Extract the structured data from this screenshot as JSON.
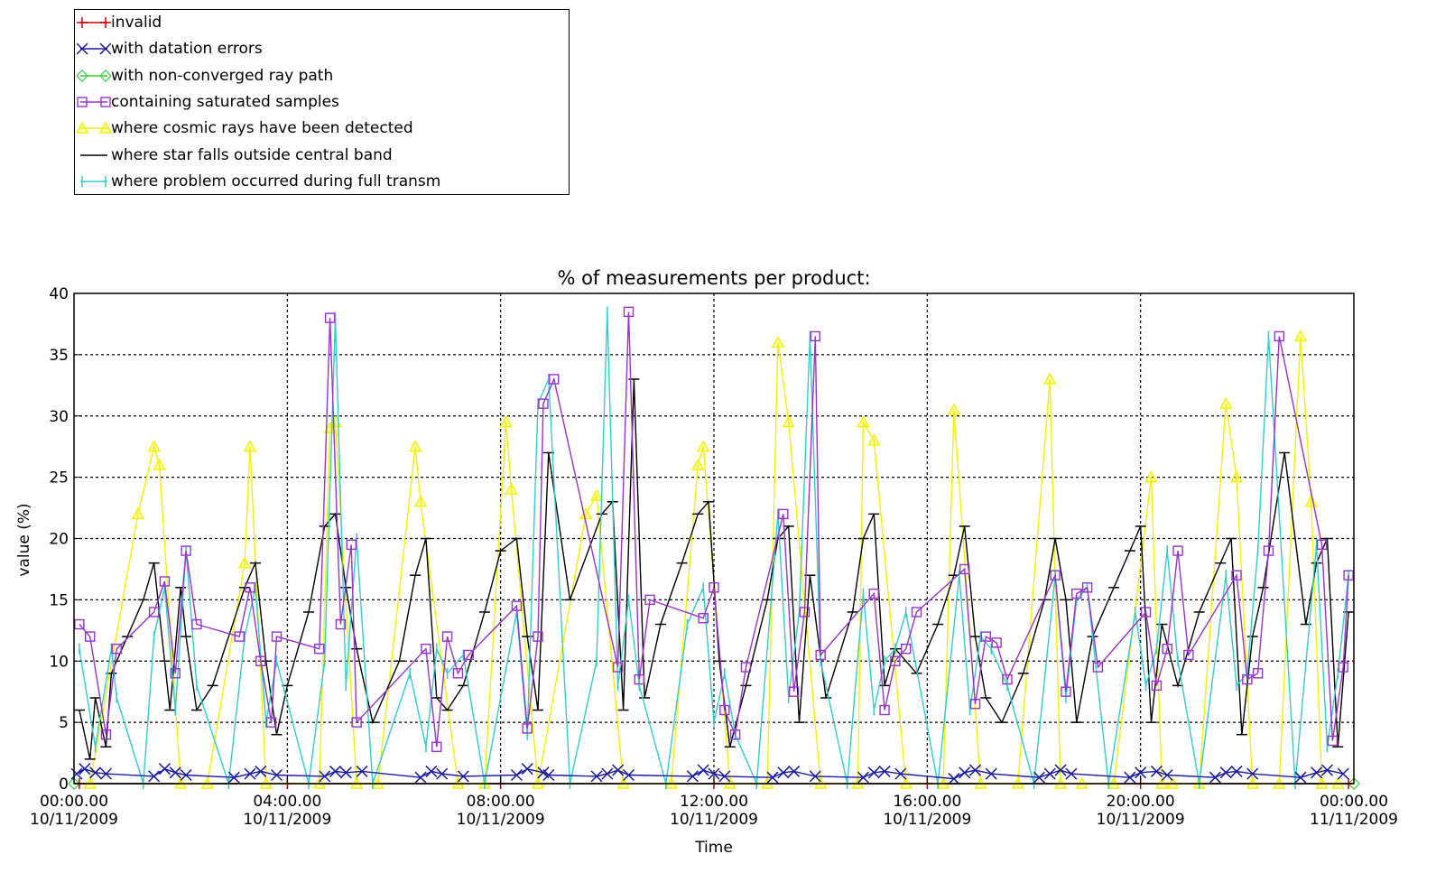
{
  "chart_data": {
    "type": "line",
    "title": "% of measurements per product:",
    "xlabel": "Time",
    "ylabel": "value (%)",
    "ylim": [
      0,
      40
    ],
    "xlim_hours": [
      0,
      24
    ],
    "yticks": [
      0,
      5,
      10,
      15,
      20,
      25,
      30,
      35,
      40
    ],
    "xticks": [
      {
        "hour": 0,
        "time": "00:00.00",
        "date": "10/11/2009"
      },
      {
        "hour": 4,
        "time": "04:00.00",
        "date": "10/11/2009"
      },
      {
        "hour": 8,
        "time": "08:00.00",
        "date": "10/11/2009"
      },
      {
        "hour": 12,
        "time": "12:00.00",
        "date": "10/11/2009"
      },
      {
        "hour": 16,
        "time": "16:00.00",
        "date": "10/11/2009"
      },
      {
        "hour": 20,
        "time": "20:00.00",
        "date": "10/11/2009"
      },
      {
        "hour": 24,
        "time": "00:00.00",
        "date": "11/11/2009"
      }
    ],
    "grid": true,
    "legend_position": "top-left outside plot",
    "series": [
      {
        "name": "invalid",
        "color": "#cc0000",
        "marker": "plus",
        "x": [
          0.1,
          4.0,
          8.0,
          12.0,
          16.0,
          20.0,
          23.9
        ],
        "y": [
          0,
          0,
          0,
          0,
          0,
          0,
          0
        ]
      },
      {
        "name": "with datation errors",
        "color": "#1a1aa0",
        "marker": "x",
        "x": [
          0.05,
          0.2,
          0.4,
          0.6,
          1.5,
          1.7,
          1.9,
          2.1,
          3.0,
          3.3,
          3.5,
          3.8,
          4.7,
          4.9,
          5.1,
          5.4,
          6.5,
          6.7,
          6.9,
          7.3,
          8.3,
          8.5,
          8.8,
          8.9,
          9.8,
          10.0,
          10.2,
          10.4,
          11.6,
          11.8,
          12.0,
          12.2,
          13.1,
          13.3,
          13.5,
          13.9,
          14.8,
          15.0,
          15.2,
          15.5,
          16.5,
          16.7,
          16.9,
          17.2,
          18.1,
          18.3,
          18.5,
          18.7,
          19.8,
          20.0,
          20.3,
          20.5,
          21.4,
          21.6,
          21.8,
          22.1,
          23.0,
          23.3,
          23.5,
          23.8
        ],
        "y": [
          0.8,
          1.2,
          0.9,
          0.8,
          0.6,
          1.2,
          0.9,
          0.7,
          0.5,
          0.8,
          1.0,
          0.7,
          0.6,
          1.0,
          0.9,
          1.0,
          0.5,
          1.0,
          0.8,
          0.6,
          0.7,
          1.2,
          0.9,
          0.7,
          0.6,
          0.8,
          1.1,
          0.7,
          0.6,
          1.1,
          0.8,
          0.6,
          0.5,
          0.9,
          1.0,
          0.6,
          0.5,
          0.9,
          1.0,
          0.8,
          0.4,
          0.9,
          1.1,
          0.8,
          0.5,
          0.8,
          1.1,
          0.8,
          0.5,
          0.9,
          1.0,
          0.7,
          0.5,
          0.9,
          1.0,
          0.8,
          0.5,
          0.9,
          1.1,
          0.8
        ]
      },
      {
        "name": "with non-converged ray path",
        "color": "#33cc33",
        "marker": "diamond",
        "x": [
          0.0,
          24.0
        ],
        "y": [
          0,
          0
        ]
      },
      {
        "name": "containing saturated samples",
        "color": "#9933cc",
        "marker": "square",
        "x": [
          0.1,
          0.3,
          0.6,
          0.8,
          1.5,
          1.7,
          1.9,
          2.1,
          2.3,
          3.1,
          3.3,
          3.5,
          3.7,
          3.8,
          4.6,
          4.8,
          5.0,
          5.2,
          5.3,
          6.6,
          6.8,
          7.0,
          7.2,
          7.4,
          8.3,
          8.5,
          8.7,
          8.8,
          9.0,
          10.2,
          10.4,
          10.6,
          10.8,
          11.8,
          12.0,
          12.2,
          12.4,
          12.6,
          13.3,
          13.5,
          13.7,
          13.9,
          14.0,
          15.0,
          15.2,
          15.4,
          15.6,
          15.8,
          16.7,
          16.9,
          17.1,
          17.3,
          17.5,
          18.4,
          18.6,
          18.8,
          19.0,
          19.2,
          20.1,
          20.3,
          20.5,
          20.7,
          20.9,
          21.8,
          22.0,
          22.2,
          22.4,
          22.6,
          23.4,
          23.6,
          23.8,
          23.9
        ],
        "y": [
          13,
          12,
          4,
          11,
          14,
          16.5,
          9,
          19,
          13,
          12,
          16,
          10,
          5,
          12,
          11,
          38,
          13,
          19.5,
          5,
          11,
          3,
          12,
          9,
          10.5,
          14.5,
          4.5,
          12,
          31,
          33,
          9.5,
          38.5,
          8.5,
          15,
          13.5,
          16,
          6,
          4,
          9.5,
          22,
          7.5,
          14,
          36.5,
          10.5,
          15.5,
          6,
          10,
          11,
          14,
          17.5,
          6.5,
          12,
          11.5,
          8.5,
          17,
          7.5,
          15.5,
          16,
          9.5,
          14,
          8,
          11,
          19,
          10.5,
          17,
          8.5,
          9,
          19,
          36.5,
          19.5,
          3.5,
          9.5,
          17
        ]
      },
      {
        "name": "where cosmic rays have been detected",
        "color": "#f2f200",
        "marker": "triangle",
        "x": [
          0.3,
          1.2,
          1.5,
          1.6,
          2.0,
          2.5,
          3.2,
          3.3,
          3.6,
          4.6,
          4.8,
          4.9,
          5.3,
          5.7,
          6.4,
          6.5,
          7.2,
          7.7,
          8.1,
          8.2,
          8.7,
          9.6,
          9.8,
          10.3,
          11.2,
          11.7,
          11.8,
          12.3,
          13.0,
          13.2,
          13.4,
          14.0,
          14.7,
          14.8,
          15.0,
          15.6,
          16.3,
          16.5,
          17.0,
          17.7,
          18.3,
          18.5,
          18.9,
          19.5,
          20.2,
          20.4,
          20.6,
          21.1,
          21.6,
          21.8,
          22.1,
          22.6,
          23.0,
          23.2,
          23.4,
          23.7
        ],
        "y": [
          0,
          22,
          27.5,
          26,
          0,
          0,
          18,
          27.5,
          0,
          0,
          29,
          29.5,
          0,
          0,
          27.5,
          23,
          0,
          0,
          29.5,
          24,
          0,
          22,
          23.5,
          0,
          0,
          26,
          27.5,
          0,
          0,
          36,
          29.5,
          0,
          0,
          29.5,
          28,
          0,
          0,
          30.5,
          0,
          0,
          33,
          0,
          0,
          0,
          25,
          0,
          0,
          0,
          31,
          25,
          0,
          0,
          36.5,
          23,
          0,
          0
        ]
      },
      {
        "name": "where star falls outside central band",
        "color": "#000000",
        "marker": "bar",
        "x": [
          0.1,
          0.3,
          0.4,
          0.6,
          0.7,
          1.0,
          1.3,
          1.5,
          1.7,
          1.8,
          2.0,
          2.1,
          2.3,
          2.6,
          3.2,
          3.4,
          3.6,
          3.8,
          4.0,
          4.4,
          4.7,
          4.9,
          5.1,
          5.3,
          5.6,
          6.1,
          6.4,
          6.6,
          6.8,
          7.0,
          7.3,
          7.7,
          8.0,
          8.3,
          8.5,
          8.7,
          8.9,
          9.3,
          9.9,
          10.1,
          10.3,
          10.5,
          10.7,
          11.0,
          11.4,
          11.7,
          11.9,
          12.1,
          12.3,
          12.6,
          13.0,
          13.2,
          13.4,
          13.6,
          13.8,
          14.1,
          14.6,
          14.8,
          15.0,
          15.2,
          15.4,
          15.8,
          16.2,
          16.5,
          16.7,
          16.9,
          17.1,
          17.4,
          17.8,
          18.2,
          18.4,
          18.6,
          18.8,
          19.1,
          19.5,
          19.8,
          20.0,
          20.2,
          20.4,
          20.7,
          21.1,
          21.5,
          21.7,
          21.9,
          22.1,
          22.3,
          22.7,
          23.1,
          23.3,
          23.5,
          23.7,
          23.9
        ],
        "y": [
          6,
          2,
          7,
          3,
          9,
          12,
          15,
          18,
          10,
          6,
          16,
          12,
          6,
          8,
          16,
          18,
          10,
          4,
          8,
          14,
          21,
          22,
          16,
          11,
          5,
          10,
          17,
          20,
          7,
          6,
          8,
          14,
          19,
          20,
          12,
          6,
          27,
          15,
          22,
          23,
          6,
          33,
          7,
          13,
          18,
          22,
          23,
          10,
          3,
          8,
          15,
          20,
          21,
          5,
          17,
          7,
          14,
          20,
          22,
          8,
          11,
          9,
          13,
          17,
          21,
          12,
          7,
          5,
          9,
          15,
          20,
          15,
          5,
          12,
          16,
          19,
          21,
          5,
          13,
          8,
          14,
          18,
          20,
          4,
          12,
          16,
          27,
          13,
          18,
          20,
          3,
          14
        ]
      },
      {
        "name": "where problem occurred during full transm",
        "color": "#33cccc",
        "marker": "vbar",
        "x": [
          0.1,
          0.4,
          0.7,
          0.8,
          1.3,
          1.5,
          1.7,
          1.9,
          2.1,
          2.3,
          2.9,
          3.2,
          3.4,
          3.6,
          3.8,
          4.4,
          4.7,
          4.9,
          5.1,
          5.3,
          5.6,
          6.3,
          6.6,
          6.8,
          7.0,
          7.3,
          7.7,
          8.3,
          8.5,
          8.7,
          8.9,
          9.3,
          9.8,
          10.0,
          10.2,
          10.4,
          10.6,
          11.1,
          11.5,
          11.8,
          12.0,
          12.2,
          12.4,
          12.8,
          13.2,
          13.4,
          13.6,
          13.8,
          14.0,
          14.5,
          14.8,
          15.0,
          15.2,
          15.4,
          15.6,
          16.2,
          16.6,
          16.8,
          17.0,
          17.2,
          17.5,
          18.0,
          18.4,
          18.6,
          18.8,
          19.0,
          19.4,
          19.9,
          20.1,
          20.3,
          20.5,
          20.7,
          21.1,
          21.6,
          21.8,
          22.0,
          22.2,
          22.4,
          22.9,
          23.3,
          23.5,
          23.7,
          23.9
        ],
        "y": [
          11,
          3,
          11,
          7,
          0,
          12,
          16,
          6,
          19,
          8,
          0,
          12,
          16,
          5,
          10,
          0,
          10,
          38,
          8,
          20,
          0,
          9,
          3,
          11,
          9,
          10.5,
          0,
          14,
          4,
          31,
          33,
          0,
          10,
          38.5,
          8,
          15,
          8,
          0,
          13,
          16,
          5,
          9,
          4,
          0,
          22,
          7,
          14,
          36.5,
          10,
          0,
          15.5,
          6,
          10,
          11,
          14,
          0,
          17,
          6,
          12,
          11,
          8,
          0,
          17,
          7,
          15,
          16,
          0,
          14,
          8,
          11,
          19,
          10,
          0,
          17,
          8,
          9,
          19,
          36.5,
          0,
          19.5,
          3,
          9,
          17
        ]
      }
    ]
  }
}
